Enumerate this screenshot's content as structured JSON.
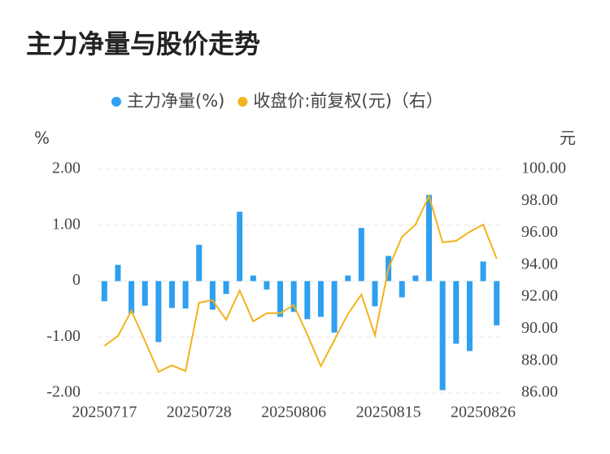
{
  "chart_data": {
    "type": "bar-line",
    "title": "主力净量与股价走势",
    "y_label": "%",
    "y2_label": "元",
    "categories": [
      "20250717",
      null,
      null,
      null,
      null,
      null,
      null,
      "20250728",
      null,
      null,
      null,
      null,
      null,
      null,
      "20250806",
      null,
      null,
      null,
      null,
      null,
      null,
      "20250815",
      null,
      null,
      null,
      null,
      null,
      null,
      "20250826",
      null
    ],
    "series": [
      {
        "name": "主力净量(%)",
        "type": "bar",
        "color": "#2f9ff0",
        "values": [
          -0.36,
          0.29,
          -0.58,
          -0.44,
          -1.09,
          -0.48,
          -0.49,
          0.65,
          -0.51,
          -0.23,
          1.24,
          0.1,
          -0.15,
          -0.64,
          -0.55,
          -0.68,
          -0.64,
          -0.92,
          0.1,
          0.95,
          -0.45,
          0.45,
          -0.29,
          0.1,
          1.54,
          -1.95,
          -1.12,
          -1.25,
          0.35,
          -0.79
        ]
      },
      {
        "name": "收盘价:前复权(元)（右）",
        "type": "line",
        "axis": "y2",
        "color": "#f2b31d",
        "values": [
          88.95,
          89.56,
          91.14,
          89.26,
          87.32,
          87.73,
          87.37,
          91.65,
          91.8,
          90.58,
          92.41,
          90.48,
          90.99,
          90.99,
          91.5,
          89.66,
          87.68,
          89.31,
          90.94,
          92.16,
          89.61,
          93.79,
          95.77,
          96.54,
          98.32,
          95.42,
          95.52,
          96.08,
          96.54,
          94.4
        ]
      }
    ],
    "ylim": [
      -2,
      2
    ],
    "yticks": [
      {
        "value": 2,
        "label": "2.00"
      },
      {
        "value": 1,
        "label": "1.00"
      },
      0,
      {
        "value": -1,
        "label": "-1.00"
      },
      {
        "value": -2,
        "label": "-2.00"
      }
    ],
    "y2lim": [
      86,
      100
    ],
    "y2ticks": [
      {
        "value": 100,
        "label": "100.00"
      },
      {
        "value": 98,
        "label": "98.00"
      },
      {
        "value": 96,
        "label": "96.00"
      },
      {
        "value": 94,
        "label": "94.00"
      },
      {
        "value": 92,
        "label": "92.00"
      },
      {
        "value": 90,
        "label": "90.00"
      },
      {
        "value": 88,
        "label": "88.00"
      },
      {
        "value": 86,
        "label": "86.00"
      }
    ],
    "grid": true
  }
}
